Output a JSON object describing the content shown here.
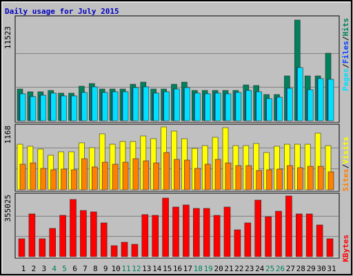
{
  "chart_data": [
    {
      "type": "bar",
      "title": "Daily usage for July 2015",
      "title_color": "#0000c0",
      "ylim": [
        0,
        11523
      ],
      "yticks": [
        11523
      ],
      "grid": true,
      "legend_separator": "/",
      "legend_order": [
        2,
        1,
        0
      ],
      "series": [
        {
          "name": "Hits",
          "color": "#00805c",
          "values": [
            3630,
            3315,
            3315,
            3470,
            3160,
            3160,
            3950,
            4260,
            3630,
            3630,
            3630,
            4180,
            4420,
            3630,
            3630,
            4180,
            4420,
            3470,
            3470,
            3470,
            3470,
            3470,
            4100,
            4030,
            3000,
            3000,
            5130,
            11523,
            5130,
            5130,
            7730
          ]
        },
        {
          "name": "Files",
          "color": "#0040ff",
          "values": [
            3080,
            2760,
            2920,
            3160,
            2840,
            2840,
            3240,
            3870,
            3240,
            3315,
            3315,
            3790,
            3870,
            3160,
            3315,
            3630,
            3790,
            3160,
            3080,
            3160,
            3080,
            3240,
            3470,
            3315,
            2530,
            2685,
            3710,
            6080,
            3550,
            4820,
            4740
          ]
        },
        {
          "name": "Pages",
          "color": "#00e0ff",
          "values": [
            3080,
            2760,
            2920,
            3160,
            2840,
            2840,
            3240,
            3870,
            3240,
            3315,
            3315,
            3790,
            3870,
            3160,
            3315,
            3630,
            3790,
            3160,
            3080,
            3160,
            3080,
            3240,
            3470,
            3315,
            2530,
            2685,
            3710,
            6080,
            3550,
            4820,
            4740
          ]
        }
      ]
    },
    {
      "type": "bar",
      "ylim": [
        0,
        1168
      ],
      "yticks": [
        1168
      ],
      "grid": true,
      "legend_separator": "/",
      "legend_order": [
        1,
        0
      ],
      "series": [
        {
          "name": "Visits",
          "color": "#ffff00",
          "values": [
            847,
            809,
            757,
            642,
            706,
            706,
            873,
            783,
            1040,
            847,
            898,
            898,
            1001,
            950,
            1168,
            1091,
            950,
            770,
            821,
            976,
            1155,
            821,
            821,
            860,
            693,
            809,
            847,
            847,
            847,
            1053,
            821
          ]
        },
        {
          "name": "Sites",
          "color": "#ff8000",
          "values": [
            475,
            500,
            398,
            372,
            385,
            372,
            578,
            424,
            513,
            475,
            513,
            578,
            539,
            500,
            693,
            565,
            552,
            398,
            475,
            565,
            500,
            449,
            449,
            359,
            372,
            385,
            449,
            411,
            436,
            436,
            334
          ]
        }
      ]
    },
    {
      "type": "bar",
      "ylim": [
        0,
        355025
      ],
      "yticks": [
        355025
      ],
      "grid": true,
      "legend_order": [
        0
      ],
      "categories": [
        "1",
        "2",
        "3",
        "4",
        "5",
        "6",
        "7",
        "8",
        "9",
        "10",
        "11",
        "12",
        "13",
        "14",
        "15",
        "16",
        "17",
        "18",
        "19",
        "20",
        "21",
        "22",
        "23",
        "24",
        "25",
        "26",
        "27",
        "28",
        "29",
        "30",
        "31"
      ],
      "category_colors": [
        "#000000",
        "#000000",
        "#000000",
        "#00805c",
        "#00805c",
        "#000000",
        "#000000",
        "#000000",
        "#000000",
        "#000000",
        "#00805c",
        "#00805c",
        "#000000",
        "#000000",
        "#000000",
        "#000000",
        "#000000",
        "#00805c",
        "#00805c",
        "#000000",
        "#000000",
        "#000000",
        "#000000",
        "#000000",
        "#00805c",
        "#00805c",
        "#000000",
        "#000000",
        "#000000",
        "#000000",
        "#000000"
      ],
      "series": [
        {
          "name": "KBytes",
          "color": "#ff0000",
          "values": [
            104900,
            250100,
            104900,
            165400,
            242000,
            334800,
            270300,
            262200,
            197700,
            64500,
            84700,
            72600,
            246100,
            242000,
            342900,
            290400,
            302600,
            282400,
            282400,
            242000,
            290400,
            157300,
            197700,
            330800,
            234000,
            266200,
            355025,
            250100,
            250100,
            185600,
            104900
          ]
        }
      ]
    }
  ]
}
